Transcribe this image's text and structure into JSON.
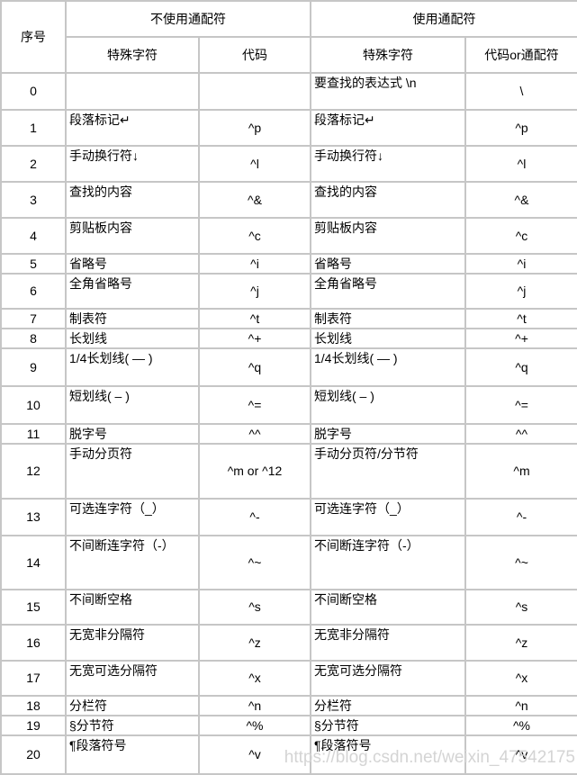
{
  "table": {
    "header": {
      "col_no": "序号",
      "group_no_wildcard": "不使用通配符",
      "group_wildcard": "使用通配符",
      "sub_special_char": "特殊字符",
      "sub_code": "代码",
      "sub_special_char_wc": "特殊字符",
      "sub_code_wc": "代码or通配符"
    },
    "rows": [
      {
        "no": "0",
        "special": "",
        "code": "",
        "special_wc": "要查找的表达式 \\n",
        "code_wc": "\\"
      },
      {
        "no": "1",
        "special": "段落标记↵",
        "code": "^p",
        "special_wc": "段落标记↵",
        "code_wc": "^p"
      },
      {
        "no": "2",
        "special": "手动换行符↓",
        "code": "^l",
        "special_wc": "手动换行符↓",
        "code_wc": "^l"
      },
      {
        "no": "3",
        "special": "查找的内容",
        "code": "^&",
        "special_wc": "查找的内容",
        "code_wc": "^&"
      },
      {
        "no": "4",
        "special": "剪贴板内容",
        "code": "^c",
        "special_wc": "剪贴板内容",
        "code_wc": "^c"
      },
      {
        "no": "5",
        "special": "省略号",
        "code": "^i",
        "special_wc": "省略号",
        "code_wc": "^i"
      },
      {
        "no": "6",
        "special": "全角省略号",
        "code": "^j",
        "special_wc": "全角省略号",
        "code_wc": "^j"
      },
      {
        "no": "7",
        "special": "制表符",
        "code": "^t",
        "special_wc": "制表符",
        "code_wc": "^t"
      },
      {
        "no": "8",
        "special": "长划线",
        "code": "^+",
        "special_wc": "长划线",
        "code_wc": "^+"
      },
      {
        "no": "9",
        "special": "1/4长划线( — )",
        "code": "^q",
        "special_wc": "1/4长划线( — )",
        "code_wc": "^q"
      },
      {
        "no": "10",
        "special": "短划线( – )",
        "code": "^=",
        "special_wc": "短划线( – )",
        "code_wc": "^="
      },
      {
        "no": "11",
        "special": "脱字号",
        "code": "^^",
        "special_wc": "脱字号",
        "code_wc": "^^"
      },
      {
        "no": "12",
        "special": "手动分页符",
        "code": "^m or ^12",
        "special_wc": "手动分页符/分节符",
        "code_wc": "^m"
      },
      {
        "no": "13",
        "special": "可选连字符（_）",
        "code": "^-",
        "special_wc": "可选连字符（_）",
        "code_wc": "^-"
      },
      {
        "no": "14",
        "special": "不间断连字符（-）",
        "code": "^~",
        "special_wc": "不间断连字符（-）",
        "code_wc": "^~"
      },
      {
        "no": "15",
        "special": "不间断空格",
        "code": "^s",
        "special_wc": "不间断空格",
        "code_wc": "^s"
      },
      {
        "no": "16",
        "special": "无宽非分隔符",
        "code": "^z",
        "special_wc": "无宽非分隔符",
        "code_wc": "^z"
      },
      {
        "no": "17",
        "special": "无宽可选分隔符",
        "code": "^x",
        "special_wc": "无宽可选分隔符",
        "code_wc": "^x"
      },
      {
        "no": "18",
        "special": "分栏符",
        "code": "^n",
        "special_wc": "分栏符",
        "code_wc": "^n"
      },
      {
        "no": "19",
        "special": "§分节符",
        "code": "^%",
        "special_wc": "§分节符",
        "code_wc": "^%"
      },
      {
        "no": "20",
        "special": "¶段落符号",
        "code": "^v",
        "special_wc": "¶段落符号",
        "code_wc": "^v"
      }
    ]
  },
  "watermark": {
    "text": "https://blog.csdn.net/weixin_47542175"
  },
  "colors": {
    "border": "#c6c6c6",
    "text": "#000000",
    "watermark": "#d4d4d4"
  }
}
